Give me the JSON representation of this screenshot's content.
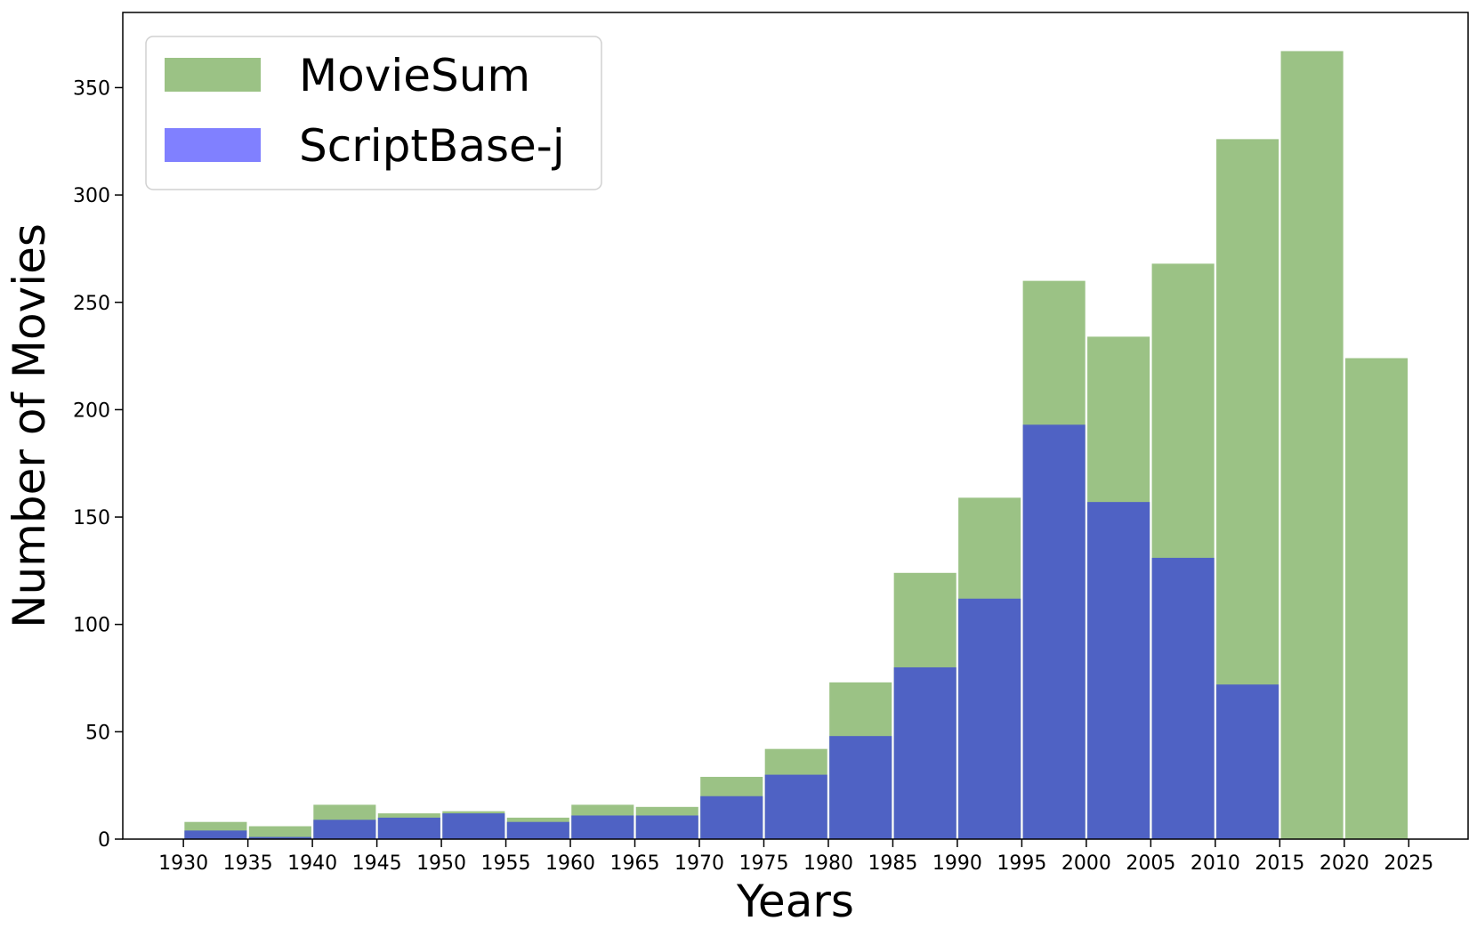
{
  "chart_data": {
    "type": "bar",
    "xlabel": "Years",
    "ylabel": "Number of Movies",
    "x_ticks": [
      "1930",
      "1935",
      "1940",
      "1945",
      "1950",
      "1955",
      "1960",
      "1965",
      "1970",
      "1975",
      "1980",
      "1985",
      "1990",
      "1995",
      "2000",
      "2005",
      "2010",
      "2015",
      "2020",
      "2025"
    ],
    "y_ticks": [
      "0",
      "50",
      "100",
      "150",
      "200",
      "250",
      "300",
      "350"
    ],
    "xlim": [
      1925.3,
      2029.6
    ],
    "ylim": [
      0,
      385
    ],
    "bins": [
      {
        "start": 1930,
        "end": 1935
      },
      {
        "start": 1935,
        "end": 1940
      },
      {
        "start": 1940,
        "end": 1945
      },
      {
        "start": 1945,
        "end": 1950
      },
      {
        "start": 1950,
        "end": 1955
      },
      {
        "start": 1955,
        "end": 1960
      },
      {
        "start": 1960,
        "end": 1965
      },
      {
        "start": 1965,
        "end": 1970
      },
      {
        "start": 1970,
        "end": 1975
      },
      {
        "start": 1975,
        "end": 1980
      },
      {
        "start": 1980,
        "end": 1985
      },
      {
        "start": 1985,
        "end": 1990
      },
      {
        "start": 1990,
        "end": 1995
      },
      {
        "start": 1995,
        "end": 2000
      },
      {
        "start": 2000,
        "end": 2005
      },
      {
        "start": 2005,
        "end": 2010
      },
      {
        "start": 2010,
        "end": 2015
      },
      {
        "start": 2015,
        "end": 2020
      },
      {
        "start": 2020,
        "end": 2025
      }
    ],
    "series": [
      {
        "name": "MovieSum",
        "color": "#9bc285",
        "values": [
          8,
          6,
          16,
          12,
          13,
          10,
          16,
          15,
          29,
          42,
          73,
          124,
          159,
          260,
          234,
          268,
          326,
          367,
          224
        ]
      },
      {
        "name": "ScriptBase-j",
        "color": "#4f62c4",
        "legend_color": "#8080ff",
        "values": [
          4,
          1,
          9,
          10,
          12,
          8,
          11,
          11,
          20,
          30,
          48,
          80,
          112,
          193,
          157,
          131,
          72,
          0,
          0
        ]
      }
    ],
    "legend": {
      "position": "top-left"
    },
    "grid": false
  }
}
